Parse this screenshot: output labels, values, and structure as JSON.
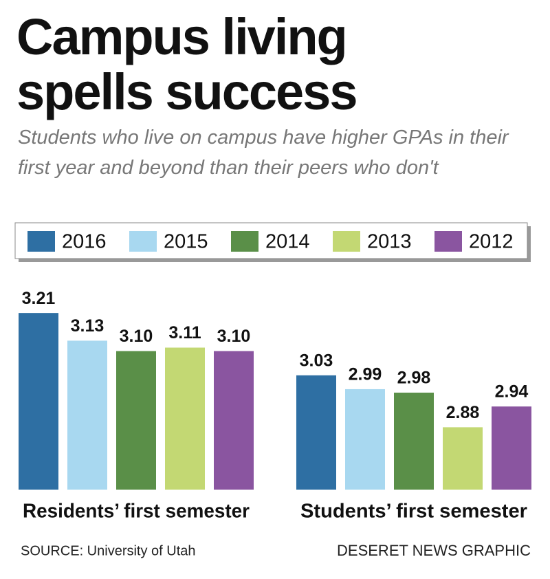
{
  "chart_data": {
    "type": "bar",
    "title": "Campus living spells success",
    "subtitle": "Students who live on campus have higher GPAs in their first year and beyond than their peers who don't",
    "categories": [
      "Residents’ first semester",
      "Students’ first semester"
    ],
    "series": [
      {
        "name": "2016",
        "color": "#2e6fa3",
        "values": [
          3.21,
          3.03
        ],
        "value_labels": [
          "3.21",
          "3.03"
        ]
      },
      {
        "name": "2015",
        "color": "#a8d8f0",
        "values": [
          3.13,
          2.99
        ],
        "value_labels": [
          "3.13",
          "2.99"
        ]
      },
      {
        "name": "2014",
        "color": "#5a8f48",
        "values": [
          3.1,
          2.98
        ],
        "value_labels": [
          "3.10",
          "2.98"
        ]
      },
      {
        "name": "2013",
        "color": "#c3d873",
        "values": [
          3.11,
          2.88
        ],
        "value_labels": [
          "3.11",
          "2.88"
        ]
      },
      {
        "name": "2012",
        "color": "#8a55a0",
        "values": [
          3.1,
          2.94
        ],
        "value_labels": [
          "3.10",
          "2.94"
        ]
      }
    ],
    "ylim": [
      2.7,
      3.25
    ],
    "legend": "top",
    "source": "SOURCE: University of Utah",
    "credit": "DESERET NEWS GRAPHIC"
  }
}
